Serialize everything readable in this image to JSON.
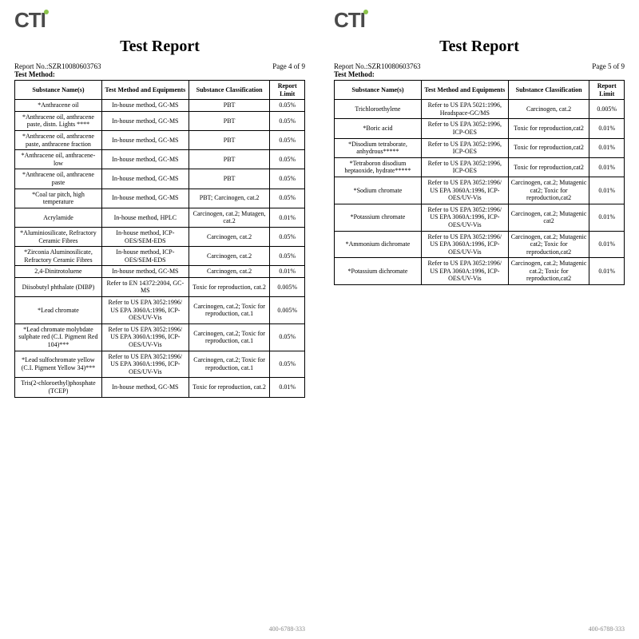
{
  "logo_text": "CTI",
  "title": "Test Report",
  "page_left": {
    "report_no": "Report No.:SZR10080603763",
    "page": "Page 4 of 9",
    "section": "Test Method:",
    "headers": [
      "Substance Name(s)",
      "Test Method and Equipments",
      "Substance Classification",
      "Report Limit"
    ],
    "rows": [
      [
        "*Anthracene oil",
        "In-house method, GC-MS",
        "PBT",
        "0.05%"
      ],
      [
        "*Anthracene oil, anthracene paste, distn. Lights ****",
        "In-house method, GC-MS",
        "PBT",
        "0.05%"
      ],
      [
        "*Anthracene oil, anthracene paste, anthracene fraction",
        "In-house method, GC-MS",
        "PBT",
        "0.05%"
      ],
      [
        "*Anthracene oil, anthracene-low",
        "In-house method, GC-MS",
        "PBT",
        "0.05%"
      ],
      [
        "*Anthracene oil, anthracene paste",
        "In-house method, GC-MS",
        "PBT",
        "0.05%"
      ],
      [
        "*Coal tar pitch, high temperature",
        "In-house method, GC-MS",
        "PBT; Carcinogen, cat.2",
        "0.05%"
      ],
      [
        "Acrylamide",
        "In-house method, HPLC",
        "Carcinogen, cat.2; Mutagen, cat.2",
        "0.01%"
      ],
      [
        "*Aluminiosilicate, Refractory Ceramic Fibres",
        "In-house method, ICP-OES/SEM-EDS",
        "Carcinogen, cat.2",
        "0.05%"
      ],
      [
        "*Zirconia Aluminosilicate, Refractory Ceramic Fibres",
        "In-house method, ICP-OES/SEM-EDS",
        "Carcinogen, cat.2",
        "0.05%"
      ],
      [
        "2,4-Dinitrotoluene",
        "In-house method, GC-MS",
        "Carcinogen, cat.2",
        "0.01%"
      ],
      [
        "Diisobutyl phthalate (DIBP)",
        "Refer to EN 14372:2004, GC-MS",
        "Toxic for reproduction, cat.2",
        "0.005%"
      ],
      [
        "*Lead chromate",
        "Refer to US EPA 3052:1996/ US EPA 3060A:1996, ICP-OES/UV-Vis",
        "Carcinogen, cat.2; Toxic for reproduction, cat.1",
        "0.005%"
      ],
      [
        "*Lead chromate molybdate sulphate red (C.I. Pigment Red 104)***",
        "Refer to US EPA 3052:1996/ US EPA 3060A:1996, ICP-OES/UV-Vis",
        "Carcinogen, cat.2; Toxic for reproduction, cat.1",
        "0.05%"
      ],
      [
        "*Lead sulfochromate yellow (C.I. Pigment Yellow 34)***",
        "Refer to US EPA 3052:1996/ US EPA 3060A:1996, ICP-OES/UV-Vis",
        "Carcinogen, cat.2; Toxic for reproduction, cat.1",
        "0.05%"
      ],
      [
        "Tris(2-chloroethyl)phosphate (TCEP)",
        "In-house method, GC-MS",
        "Toxic for reproduction, cat.2",
        "0.01%"
      ]
    ]
  },
  "page_right": {
    "report_no": "Report No.:SZR10080603763",
    "page": "Page 5 of 9",
    "section": "Test Method:",
    "headers": [
      "Substance Name(s)",
      "Test Method and Equipments",
      "Substance Classification",
      "Report Limit"
    ],
    "rows": [
      [
        "Trichloroethylene",
        "Refer to US EPA 5021:1996, Headspace-GC/MS",
        "Carcinogen, cat.2",
        "0.005%"
      ],
      [
        "*Boric acid",
        "Refer to US EPA 3052:1996, ICP-OES",
        "Toxic for reproduction,cat2",
        "0.01%"
      ],
      [
        "*Disodium tetraborate, anhydrous*****",
        "Refer to US EPA 3052:1996, ICP-OES",
        "Toxic for reproduction,cat2",
        "0.01%"
      ],
      [
        "*Tetraboron disodium heptaoxide, hydrate*****",
        "Refer to US EPA 3052:1996, ICP-OES",
        "Toxic for reproduction,cat2",
        "0.01%"
      ],
      [
        "*Sodium chromate",
        "Refer to US EPA 3052:1996/ US EPA 3060A:1996, ICP-OES/UV-Vis",
        "Carcinogen, cat.2; Mutagenic cat2; Toxic for reproduction,cat2",
        "0.01%"
      ],
      [
        "*Potassium chromate",
        "Refer to US EPA 3052:1996/ US EPA 3060A:1996, ICP-OES/UV-Vis",
        "Carcinogen, cat.2; Mutagenic cat2",
        "0.01%"
      ],
      [
        "*Ammonium dichromate",
        "Refer to US EPA 3052:1996/ US EPA 3060A:1996, ICP-OES/UV-Vis",
        "Carcinogen, cat.2; Mutagenic cat2; Toxic for reproduction,cat2",
        "0.01%"
      ],
      [
        "*Potassium dichromate",
        "Refer to US EPA 3052:1996/ US EPA 3060A:1996, ICP-OES/UV-Vis",
        "Carcinogen, cat.2; Mutagenic cat.2; Toxic for reproduction,cat2",
        "0.01%"
      ]
    ]
  },
  "footer_phone_left": "400-6788-333",
  "footer_phone_right": "400-6788-333"
}
